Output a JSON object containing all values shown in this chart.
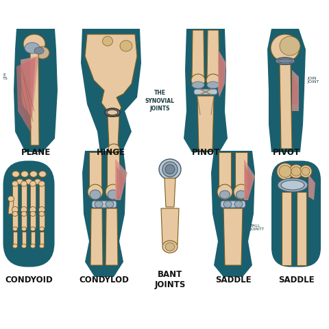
{
  "background_color": "#ffffff",
  "teal_color": "#1a5f6e",
  "bone_color": "#e8c8a0",
  "bone_dark": "#d4a96a",
  "muscle_red": "#c87070",
  "muscle_pink": "#d4908a",
  "cartilage_gray": "#9aacba",
  "cartilage_light": "#b8c8d4",
  "title": "THE\nSYNOVIAL\nJOINTS",
  "labels_row1": [
    "PLANE",
    "HINGE",
    "PINOT",
    "PIVOT"
  ],
  "labels_row2": [
    "CONDYOID",
    "CONDYLOD",
    "BANT\nJOINTS",
    "SADDLE",
    "SADDLE"
  ],
  "figsize": [
    4.8,
    4.8
  ],
  "dpi": 100
}
